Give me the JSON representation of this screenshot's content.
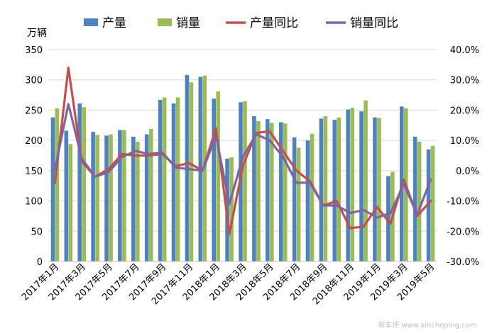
{
  "chart_data": {
    "type": "bar",
    "y_unit_label": "万辆",
    "ylim": [
      0,
      350
    ],
    "yticks": [
      0,
      50,
      100,
      150,
      200,
      250,
      300,
      350
    ],
    "y2lim": [
      -30,
      40
    ],
    "y2ticks": [
      "-30.0%",
      "-20.0%",
      "-10.0%",
      "0.0%",
      "10.0%",
      "20.0%",
      "30.0%",
      "40.0%"
    ],
    "y2tick_values": [
      -30,
      -20,
      -10,
      0,
      10,
      20,
      30,
      40
    ],
    "grid": true,
    "legend_position": "top",
    "x_tick_labels": [
      "2017年1月",
      "2017年3月",
      "2017年5月",
      "2017年7月",
      "2017年9月",
      "2017年11月",
      "2018年1月",
      "2018年3月",
      "2018年5月",
      "2018年7月",
      "2018年9月",
      "2018年11月",
      "2019年1月",
      "2019年3月",
      "2019年5月"
    ],
    "categories": [
      "2017-01",
      "2017-02",
      "2017-03",
      "2017-04",
      "2017-05",
      "2017-06",
      "2017-07",
      "2017-08",
      "2017-09",
      "2017-10",
      "2017-11",
      "2017-12",
      "2018-01",
      "2018-02",
      "2018-03",
      "2018-04",
      "2018-05",
      "2018-06",
      "2018-07",
      "2018-08",
      "2018-09",
      "2018-10",
      "2018-11",
      "2018-12",
      "2019-01",
      "2019-02",
      "2019-03",
      "2019-04",
      "2019-05"
    ],
    "series": [
      {
        "name": "产量",
        "kind": "bar",
        "axis": "left",
        "color": "#4f81bd",
        "values": [
          238,
          216,
          261,
          214,
          208,
          217,
          206,
          210,
          267,
          261,
          308,
          305,
          269,
          170,
          263,
          240,
          235,
          230,
          205,
          200,
          236,
          234,
          251,
          248,
          238,
          141,
          256,
          206,
          185
        ]
      },
      {
        "name": "销量",
        "kind": "bar",
        "axis": "left",
        "color": "#9bbb59",
        "values": [
          253,
          194,
          255,
          209,
          210,
          217,
          198,
          219,
          271,
          271,
          296,
          307,
          281,
          172,
          265,
          232,
          229,
          228,
          188,
          211,
          240,
          238,
          254,
          266,
          237,
          148,
          253,
          198,
          191
        ]
      },
      {
        "name": "产量同比",
        "kind": "line",
        "axis": "right",
        "color": "#c0504d",
        "values": [
          -4.0,
          34.0,
          3.0,
          -2.0,
          0.5,
          5.5,
          5.0,
          5.0,
          5.5,
          1.5,
          2.5,
          0.0,
          14.0,
          -21.0,
          1.5,
          12.5,
          13.0,
          6.5,
          0.0,
          -3.5,
          -11.5,
          -10.0,
          -19.0,
          -18.5,
          -12.0,
          -17.5,
          -3.0,
          -15.0,
          -10.0
        ]
      },
      {
        "name": "销量同比",
        "kind": "line",
        "axis": "right",
        "color": "#8064a2",
        "values": [
          0.5,
          22.0,
          4.0,
          -2.0,
          -0.5,
          4.5,
          6.5,
          5.5,
          6.0,
          1.0,
          0.5,
          0.0,
          11.5,
          -11.0,
          4.5,
          12.0,
          10.0,
          4.5,
          -4.0,
          -4.0,
          -11.5,
          -11.5,
          -14.0,
          -13.0,
          -15.5,
          -14.0,
          -4.5,
          -14.5,
          -3.0
        ]
      }
    ]
  },
  "watermark": "新车评 www.xincheping.com"
}
